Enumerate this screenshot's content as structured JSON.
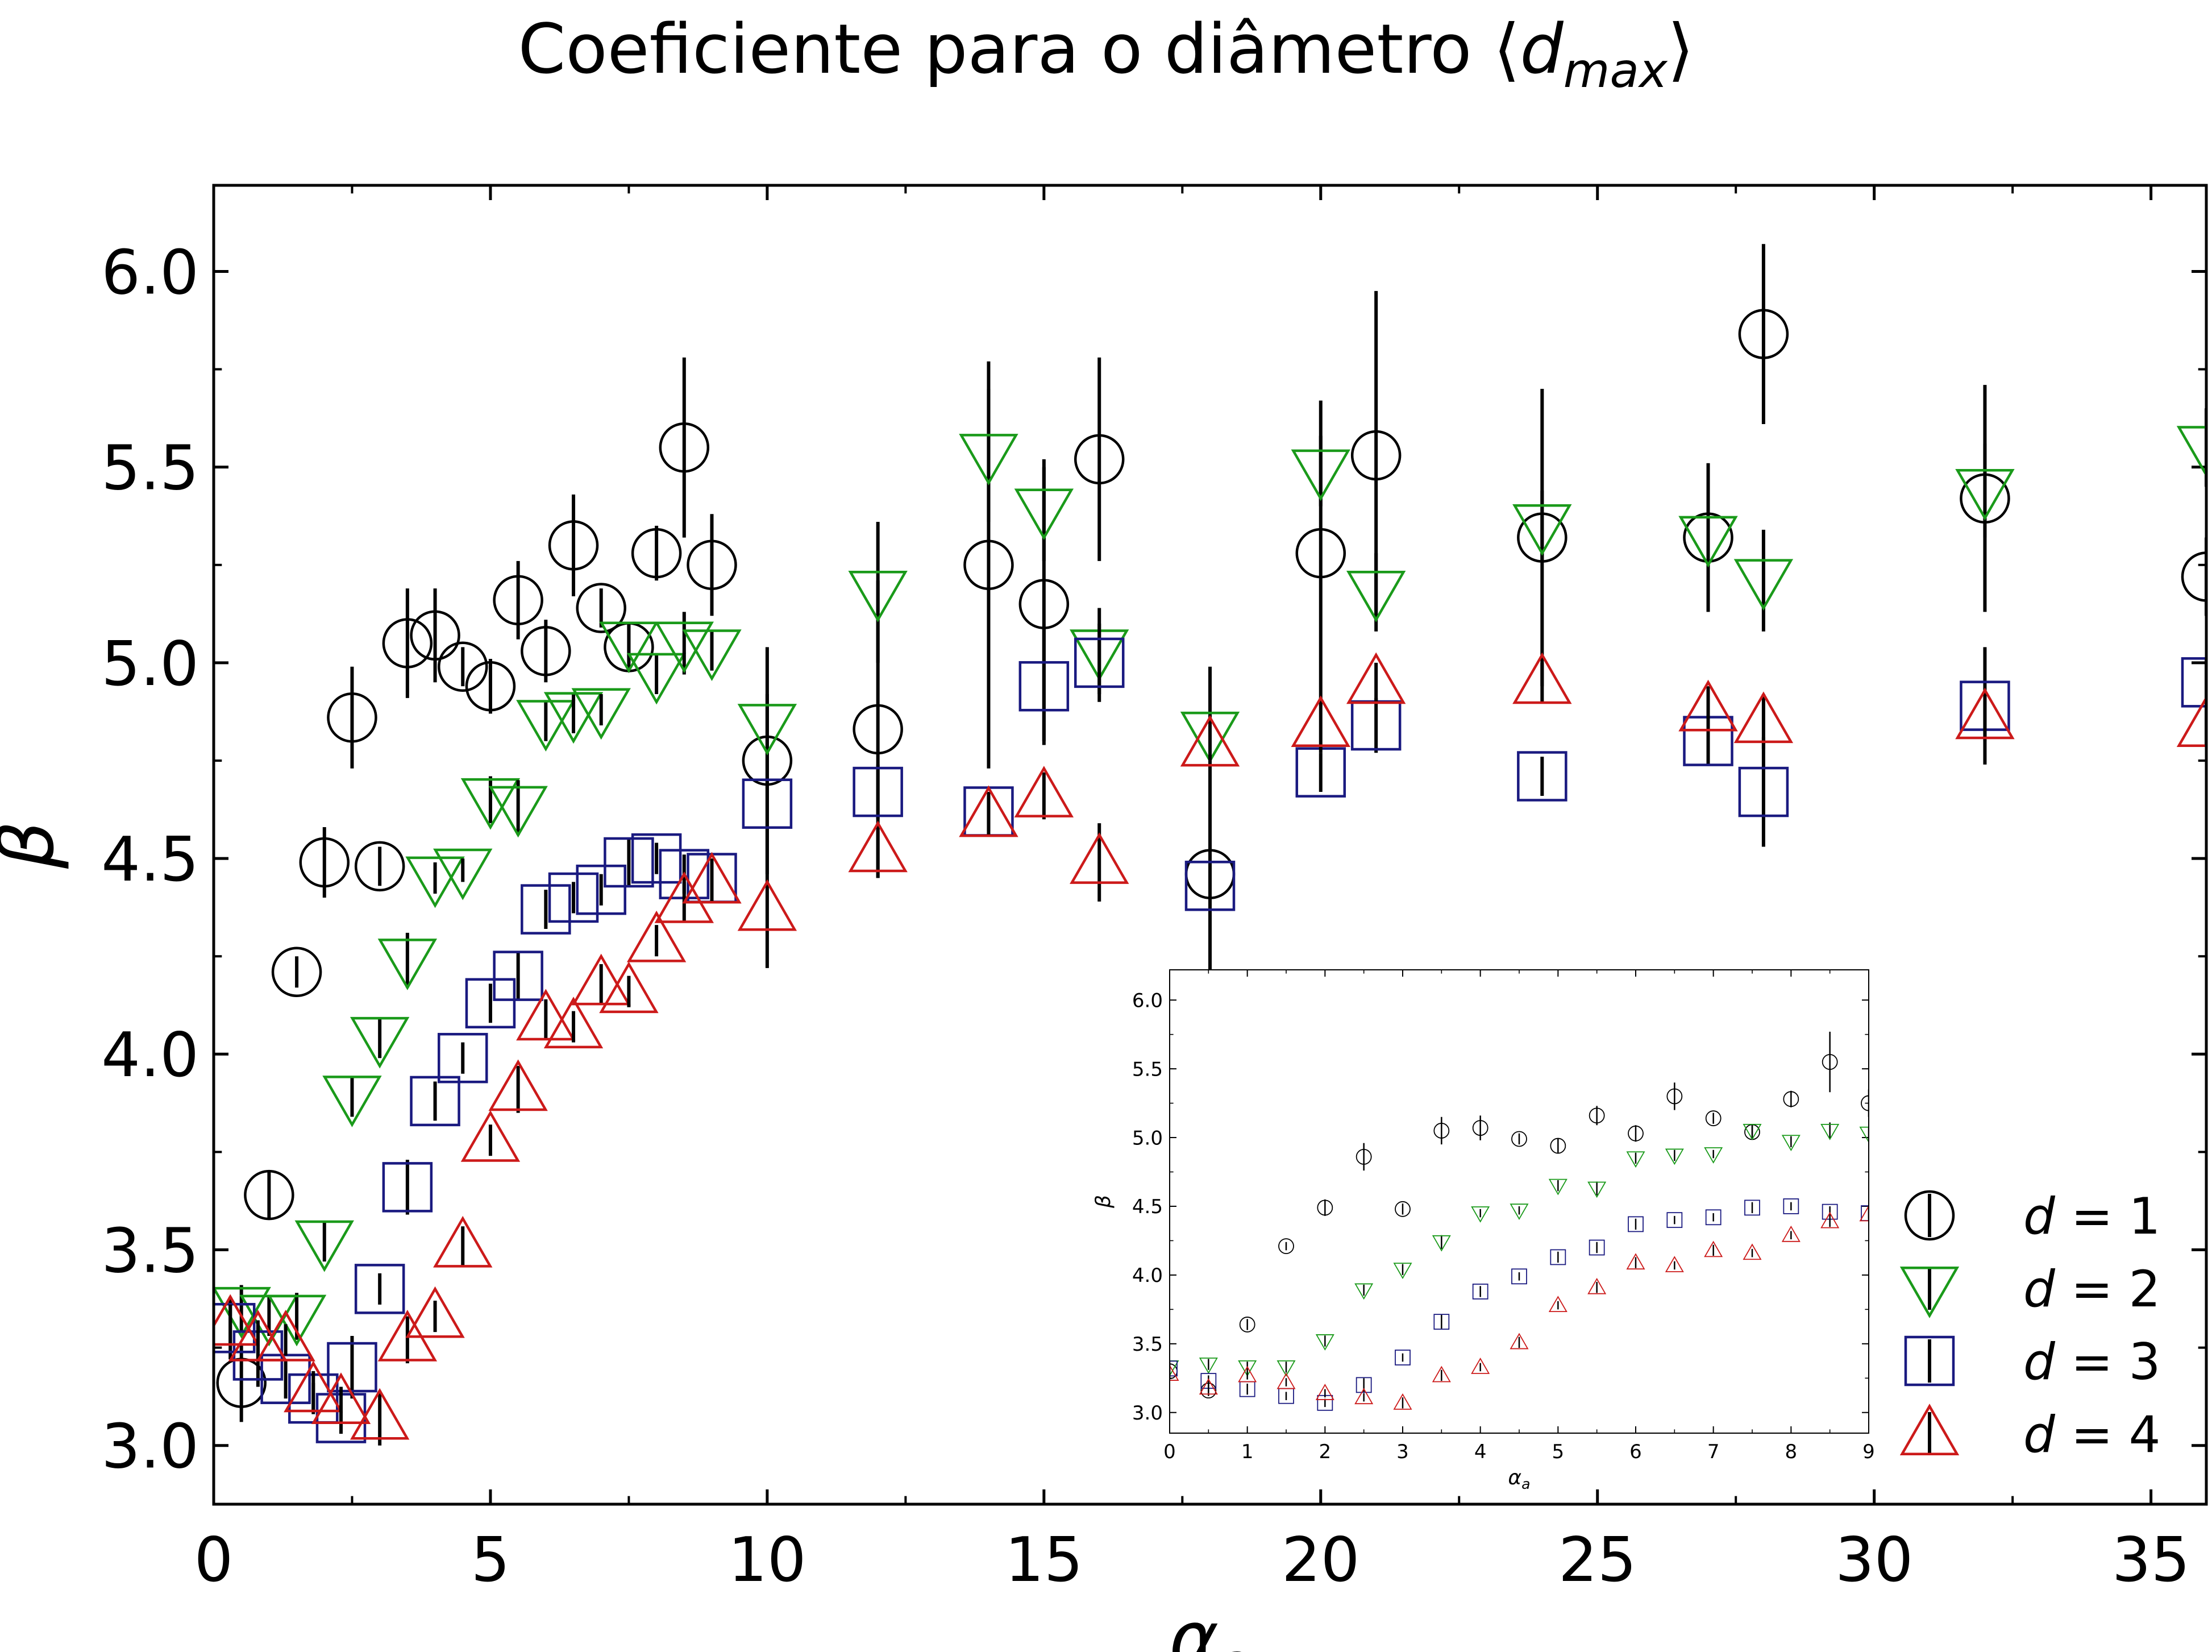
{
  "title": {
    "main": "Coeficiente para o diâmetro ⟨",
    "var": "d",
    "sub": "max",
    "close": "⟩"
  },
  "colors": {
    "d1": "#000000",
    "d2": "#1a9a1a",
    "d3": "#1a1a80",
    "d4": "#cc1a1a",
    "errorbar": "#000000"
  },
  "legend": {
    "placement": "lower-right",
    "entries": [
      {
        "series": "d1",
        "marker": "circle",
        "prefix": "d",
        "suffix": " = 1"
      },
      {
        "series": "d2",
        "marker": "triangle-down",
        "prefix": "d",
        "suffix": " = 2"
      },
      {
        "series": "d3",
        "marker": "square",
        "prefix": "d",
        "suffix": " = 3"
      },
      {
        "series": "d4",
        "marker": "triangle-up",
        "prefix": "d",
        "suffix": " = 4"
      }
    ]
  },
  "chart_data": [
    {
      "type": "scatter",
      "role": "main",
      "xlabel": "α",
      "xlabel_sub": "a",
      "ylabel": "β",
      "xlim": [
        0,
        36
      ],
      "ylim": [
        2.85,
        6.22
      ],
      "xticks": [
        0,
        5,
        10,
        15,
        20,
        25,
        30,
        35
      ],
      "yticks": [
        3.0,
        3.5,
        4.0,
        4.5,
        5.0,
        5.5,
        6.0
      ],
      "ytick_labels": [
        "3.0",
        "3.5",
        "4.0",
        "4.5",
        "5.0",
        "5.5",
        "6.0"
      ],
      "grid": false,
      "series": [
        {
          "key": "d1",
          "marker": "circle",
          "x": [
            0.5,
            1.0,
            1.5,
            2.0,
            2.5,
            3.0,
            3.5,
            4.0,
            4.5,
            5.0,
            5.5,
            6.0,
            6.5,
            7.0,
            7.5,
            8.0,
            8.5,
            9.0,
            10,
            12,
            14,
            15,
            16,
            18,
            20,
            21,
            24,
            27,
            28,
            32,
            36
          ],
          "y": [
            3.16,
            3.64,
            4.21,
            4.49,
            4.86,
            4.48,
            5.05,
            5.07,
            4.99,
            4.94,
            5.16,
            5.03,
            5.3,
            5.14,
            5.04,
            5.28,
            5.55,
            5.25,
            4.75,
            4.83,
            5.25,
            5.15,
            5.52,
            4.46,
            5.28,
            5.53,
            5.32,
            5.32,
            5.84,
            5.42,
            5.22
          ],
          "err": [
            0.1,
            0.06,
            0.04,
            0.09,
            0.13,
            0.05,
            0.14,
            0.12,
            0.05,
            0.07,
            0.1,
            0.08,
            0.13,
            0.05,
            0.06,
            0.07,
            0.23,
            0.13,
            0.29,
            0.38,
            0.52,
            0.35,
            0.26,
            0.53,
            0.39,
            0.42,
            0.38,
            0.19,
            0.23,
            0.29,
            0.1
          ]
        },
        {
          "key": "d2",
          "marker": "triangle-down",
          "x": [
            0.5,
            1.0,
            1.5,
            2.0,
            2.5,
            3.0,
            3.5,
            4.0,
            4.5,
            5.0,
            5.5,
            6.0,
            6.5,
            7.0,
            7.5,
            8.0,
            8.5,
            9.0,
            10,
            12,
            14,
            15,
            16,
            18,
            20,
            21,
            24,
            27,
            28,
            32,
            36
          ],
          "y": [
            3.35,
            3.33,
            3.33,
            3.52,
            3.89,
            4.04,
            4.24,
            4.45,
            4.47,
            4.65,
            4.63,
            4.85,
            4.87,
            4.88,
            5.05,
            4.97,
            5.05,
            5.03,
            4.84,
            5.18,
            5.53,
            5.39,
            5.03,
            4.82,
            5.49,
            5.18,
            5.35,
            5.32,
            5.21,
            5.44,
            5.55
          ],
          "err": [
            0.06,
            0.05,
            0.06,
            0.05,
            0.05,
            0.05,
            0.07,
            0.04,
            0.03,
            0.06,
            0.07,
            0.05,
            0.05,
            0.04,
            0.05,
            0.05,
            0.08,
            0.05,
            0.08,
            0.18,
            0.17,
            0.13,
            0.11,
            0.11,
            0.09,
            0.1,
            0.09,
            0.1,
            0.13,
            0.12,
            0.1
          ]
        },
        {
          "key": "d3",
          "marker": "square",
          "x": [
            0.3,
            0.8,
            1.3,
            1.8,
            2.3,
            2.5,
            3.0,
            3.5,
            4.0,
            4.5,
            5.0,
            5.5,
            6.0,
            6.5,
            7.0,
            7.5,
            8.0,
            8.5,
            9.0,
            10,
            12,
            14,
            15,
            16,
            18,
            20,
            21,
            24,
            27,
            28,
            32,
            36
          ],
          "y": [
            3.3,
            3.23,
            3.17,
            3.12,
            3.07,
            3.2,
            3.4,
            3.66,
            3.88,
            3.99,
            4.13,
            4.2,
            4.37,
            4.4,
            4.42,
            4.49,
            4.5,
            4.46,
            4.45,
            4.64,
            4.67,
            4.62,
            4.94,
            5.0,
            4.43,
            4.72,
            4.84,
            4.71,
            4.8,
            4.67,
            4.89,
            4.95
          ],
          "err": [
            0.08,
            0.08,
            0.05,
            0.04,
            0.04,
            0.08,
            0.04,
            0.07,
            0.05,
            0.04,
            0.05,
            0.06,
            0.05,
            0.04,
            0.04,
            0.06,
            0.04,
            0.05,
            0.05,
            0.12,
            0.07,
            0.05,
            0.15,
            0.1,
            0.13,
            0.05,
            0.07,
            0.05,
            0.06,
            0.14,
            0.15,
            0.06
          ]
        },
        {
          "key": "d4",
          "marker": "triangle-up",
          "x": [
            0.3,
            0.8,
            1.3,
            1.8,
            2.3,
            3.0,
            3.5,
            4.0,
            4.5,
            5.0,
            5.5,
            6.0,
            6.5,
            7.0,
            7.5,
            8.0,
            8.5,
            9.0,
            10,
            12,
            14,
            15,
            16,
            18,
            20,
            21,
            24,
            27,
            28,
            32,
            36
          ],
          "y": [
            3.31,
            3.27,
            3.27,
            3.14,
            3.11,
            3.07,
            3.27,
            3.33,
            3.51,
            3.78,
            3.91,
            4.09,
            4.07,
            4.18,
            4.16,
            4.29,
            4.39,
            4.44,
            4.37,
            4.52,
            4.61,
            4.66,
            4.49,
            4.79,
            4.84,
            4.95,
            4.95,
            4.88,
            4.85,
            4.86,
            4.84
          ],
          "err": [
            0.05,
            0.05,
            0.04,
            0.05,
            0.04,
            0.07,
            0.06,
            0.04,
            0.05,
            0.04,
            0.06,
            0.05,
            0.04,
            0.05,
            0.04,
            0.04,
            0.05,
            0.05,
            0.15,
            0.07,
            0.05,
            0.06,
            0.1,
            0.06,
            0.07,
            0.05,
            0.05,
            0.06,
            0.07,
            0.06,
            0.05
          ]
        }
      ]
    },
    {
      "type": "scatter",
      "role": "inset",
      "xlabel": "α",
      "xlabel_sub": "a",
      "ylabel": "β",
      "xlim": [
        0,
        9
      ],
      "ylim": [
        2.85,
        6.22
      ],
      "xticks": [
        0,
        1,
        2,
        3,
        4,
        5,
        6,
        7,
        8,
        9
      ],
      "yticks": [
        3.0,
        3.5,
        4.0,
        4.5,
        5.0,
        5.5,
        6.0
      ],
      "ytick_labels": [
        "3.0",
        "3.5",
        "4.0",
        "4.5",
        "5.0",
        "5.5",
        "6.0"
      ],
      "grid": false,
      "series": [
        {
          "key": "d1",
          "marker": "circle",
          "x": [
            0,
            0.5,
            1.0,
            1.5,
            2.0,
            2.5,
            3.0,
            3.5,
            4.0,
            4.5,
            5.0,
            5.5,
            6.0,
            6.5,
            7.0,
            7.5,
            8.0,
            8.5,
            9.0
          ],
          "y": [
            3.3,
            3.16,
            3.64,
            4.21,
            4.49,
            4.86,
            4.48,
            5.05,
            5.07,
            4.99,
            4.94,
            5.16,
            5.03,
            5.3,
            5.14,
            5.04,
            5.28,
            5.55,
            5.25
          ],
          "err": [
            0.05,
            0.04,
            0.04,
            0.03,
            0.06,
            0.1,
            0.04,
            0.1,
            0.09,
            0.04,
            0.05,
            0.07,
            0.06,
            0.1,
            0.04,
            0.05,
            0.06,
            0.22,
            0.1
          ]
        },
        {
          "key": "d2",
          "marker": "triangle-down",
          "x": [
            0,
            0.5,
            1.0,
            1.5,
            2.0,
            2.5,
            3.0,
            3.5,
            4.0,
            4.5,
            5.0,
            5.5,
            6.0,
            6.5,
            7.0,
            7.5,
            8.0,
            8.5,
            9.0
          ],
          "y": [
            3.33,
            3.35,
            3.33,
            3.33,
            3.52,
            3.89,
            4.04,
            4.24,
            4.45,
            4.47,
            4.65,
            4.63,
            4.85,
            4.87,
            4.88,
            5.05,
            4.97,
            5.05,
            5.03
          ],
          "err": [
            0.04,
            0.04,
            0.04,
            0.04,
            0.04,
            0.04,
            0.04,
            0.05,
            0.03,
            0.03,
            0.04,
            0.05,
            0.04,
            0.04,
            0.03,
            0.04,
            0.04,
            0.06,
            0.04
          ]
        },
        {
          "key": "d3",
          "marker": "square",
          "x": [
            0,
            0.5,
            1.0,
            1.5,
            2.0,
            2.5,
            3.0,
            3.5,
            4.0,
            4.5,
            5.0,
            5.5,
            6.0,
            6.5,
            7.0,
            7.5,
            8.0,
            8.5,
            9.0
          ],
          "y": [
            3.32,
            3.23,
            3.17,
            3.12,
            3.07,
            3.2,
            3.4,
            3.66,
            3.88,
            3.99,
            4.13,
            4.2,
            4.37,
            4.4,
            4.42,
            4.49,
            4.5,
            4.46,
            4.45
          ],
          "err": [
            0.04,
            0.04,
            0.04,
            0.03,
            0.03,
            0.05,
            0.03,
            0.05,
            0.04,
            0.03,
            0.04,
            0.04,
            0.04,
            0.03,
            0.03,
            0.04,
            0.03,
            0.04,
            0.04
          ]
        },
        {
          "key": "d4",
          "marker": "triangle-up",
          "x": [
            0,
            0.5,
            1.0,
            1.5,
            2.0,
            2.5,
            3.0,
            3.5,
            4.0,
            4.5,
            5.0,
            5.5,
            6.0,
            6.5,
            7.0,
            7.5,
            8.0,
            8.5,
            9.0
          ],
          "y": [
            3.28,
            3.18,
            3.27,
            3.22,
            3.14,
            3.11,
            3.07,
            3.27,
            3.33,
            3.51,
            3.78,
            3.91,
            4.09,
            4.07,
            4.18,
            4.16,
            4.29,
            4.39,
            4.44
          ],
          "err": [
            0.03,
            0.03,
            0.03,
            0.03,
            0.03,
            0.03,
            0.04,
            0.04,
            0.03,
            0.04,
            0.03,
            0.04,
            0.04,
            0.03,
            0.04,
            0.03,
            0.03,
            0.04,
            0.04
          ]
        }
      ]
    }
  ]
}
